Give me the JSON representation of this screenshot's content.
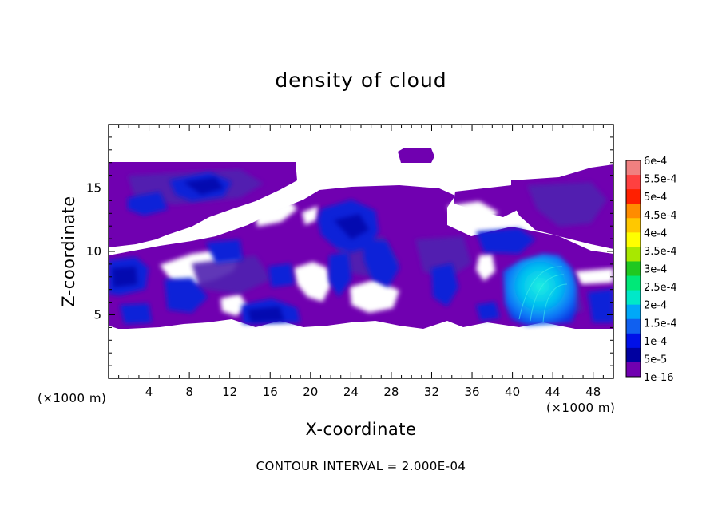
{
  "chart_data": {
    "type": "heatmap",
    "title": "density of cloud",
    "xlabel": "X-coordinate",
    "ylabel": "Z-coordinate",
    "x_unit_left": "(×1000 m)",
    "x_unit_right": "(×1000 m)",
    "footer": "CONTOUR INTERVAL = 2.000E-04",
    "xlim": [
      0,
      50
    ],
    "ylim": [
      0,
      20
    ],
    "x_ticks": [
      "4",
      "8",
      "12",
      "16",
      "20",
      "24",
      "28",
      "32",
      "36",
      "40",
      "44",
      "48"
    ],
    "x_tick_values": [
      4,
      8,
      12,
      16,
      20,
      24,
      28,
      32,
      36,
      40,
      44,
      48
    ],
    "y_ticks": [
      "5",
      "10",
      "15"
    ],
    "y_tick_values": [
      5,
      10,
      15
    ],
    "colorbar": {
      "labels": [
        "6e-4",
        "5.5e-4",
        "5e-4",
        "4.5e-4",
        "4e-4",
        "3.5e-4",
        "3e-4",
        "2.5e-4",
        "2e-4",
        "1.5e-4",
        "1e-4",
        "5e-5",
        "1e-16"
      ],
      "colors": [
        "#f08080",
        "#ff4040",
        "#ff2000",
        "#ff8c00",
        "#ffc800",
        "#ffff00",
        "#a8e800",
        "#20c820",
        "#00e878",
        "#00e8c8",
        "#00a8f8",
        "#1060f0",
        "#0010e8",
        "#0000a0",
        "#7000b0"
      ]
    },
    "cloud_regions": [
      {
        "name": "upper-left layer",
        "x_range": [
          0,
          20
        ],
        "z_range": [
          10.5,
          17
        ]
      },
      {
        "name": "upper-right layer",
        "x_range": [
          35,
          50
        ],
        "z_range": [
          11,
          17
        ]
      },
      {
        "name": "top patch",
        "x_range": [
          29,
          33
        ],
        "z_range": [
          17,
          18
        ]
      },
      {
        "name": "mid layer",
        "x_range": [
          0,
          50
        ],
        "z_range": [
          4,
          11
        ]
      },
      {
        "name": "dense core",
        "x_range": [
          39,
          47
        ],
        "z_range": [
          4.5,
          10
        ]
      }
    ]
  }
}
